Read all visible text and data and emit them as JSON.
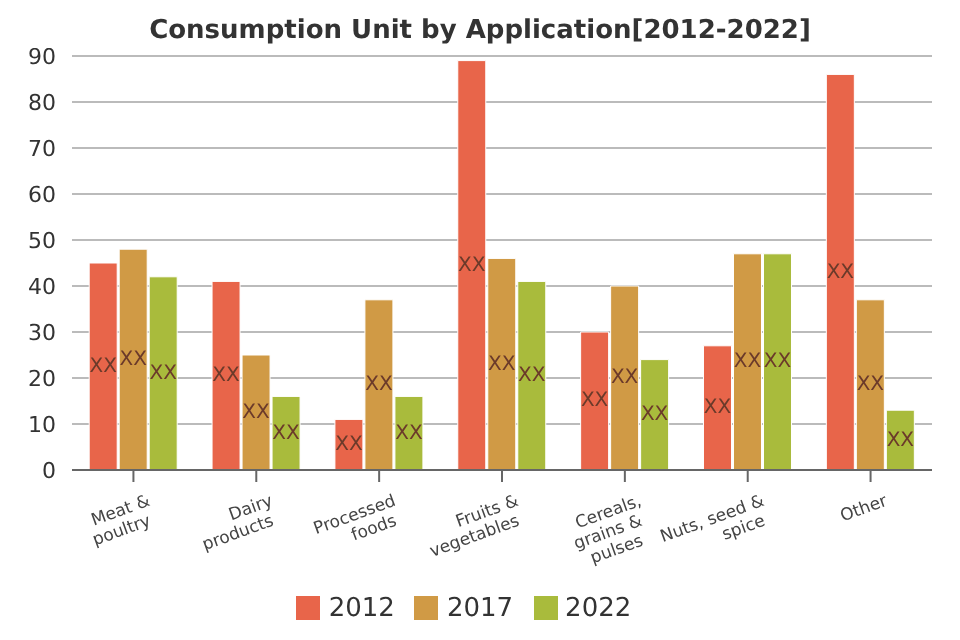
{
  "chart_data": {
    "type": "bar",
    "title": "Consumption Unit by  Application[2012-2022]",
    "categories": [
      "Meat & poultry",
      "Dairy products",
      "Processed foods",
      "Fruits & vegetables",
      "Cereals, grains & pulses",
      "Nuts, seed & spice",
      "Other"
    ],
    "series": [
      {
        "name": "2012",
        "color": "#e8654a",
        "values": [
          45,
          41,
          11,
          89,
          30,
          27,
          86
        ],
        "value_labels": [
          "XX",
          "XX",
          "XX",
          "XX",
          "XX",
          "XX",
          "XX"
        ]
      },
      {
        "name": "2017",
        "color": "#d09a45",
        "values": [
          48,
          25,
          37,
          46,
          40,
          47,
          37
        ],
        "value_labels": [
          "XX",
          "XX",
          "XX",
          "XX",
          "XX",
          "XX",
          "XX"
        ]
      },
      {
        "name": "2022",
        "color": "#a9bb3c",
        "values": [
          42,
          16,
          16,
          41,
          24,
          47,
          13
        ],
        "value_labels": [
          "XX",
          "XX",
          "XX",
          "XX",
          "XX",
          "XX",
          "XX"
        ]
      }
    ],
    "ylim": [
      0,
      90
    ],
    "yticks": [
      0,
      10,
      20,
      30,
      40,
      50,
      60,
      70,
      80,
      90
    ],
    "grid": "y",
    "legend": "bottom"
  }
}
